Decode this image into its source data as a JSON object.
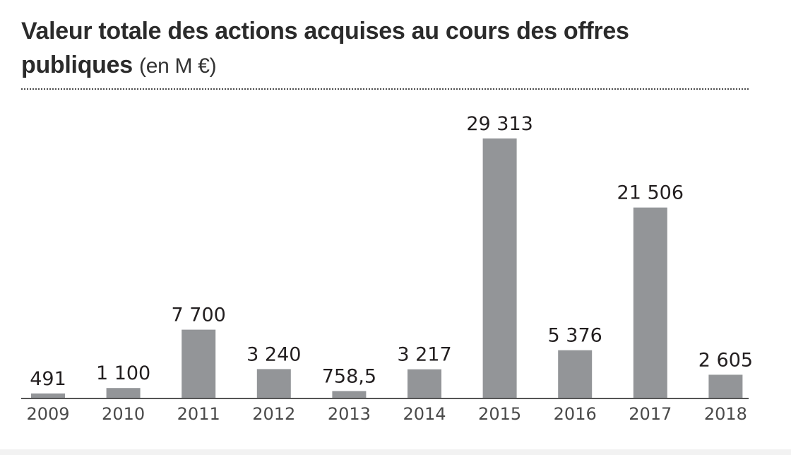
{
  "title": {
    "main_line1": "Valeur totale des actions acquises au cours des offres",
    "main_line2": "publiques",
    "unit": "(en M €)"
  },
  "colors": {
    "bar": "#939598",
    "text": "#231f20",
    "axis": "#555555"
  },
  "chart_data": {
    "type": "bar",
    "categories": [
      "2009",
      "2010",
      "2011",
      "2012",
      "2013",
      "2014",
      "2015",
      "2016",
      "2017",
      "2018"
    ],
    "values": [
      491,
      1100,
      7700,
      3240,
      758.5,
      3217,
      29313,
      5376,
      21506,
      2605
    ],
    "value_labels": [
      "491",
      "1 100",
      "7 700",
      "3 240",
      "758,5",
      "3 217",
      "29 313",
      "5 376",
      "21 506",
      "2 605"
    ],
    "title": "Valeur totale des actions acquises au cours des offres publiques (en M €)",
    "ylim": [
      0,
      30000
    ],
    "grid": false,
    "legend": "none"
  }
}
